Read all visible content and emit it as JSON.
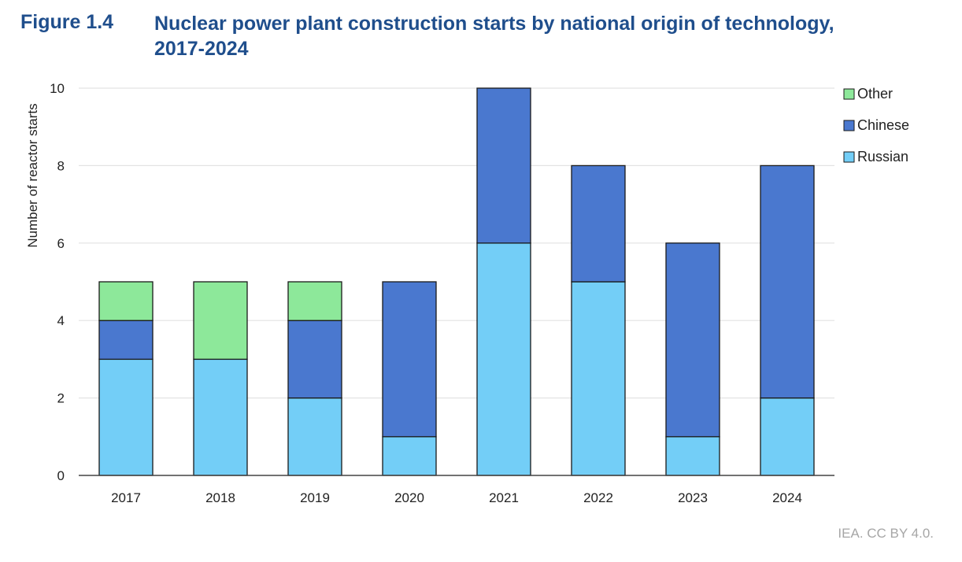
{
  "figure": {
    "label": "Figure 1.4",
    "title_line1": "Nuclear power plant construction starts by national origin of technology,",
    "title_line2": "2017-2024"
  },
  "credit": "IEA. CC BY 4.0.",
  "colors": {
    "Russian": "#73cef7",
    "Chinese": "#4a78cf",
    "Other": "#8de89a",
    "grid": "#e3e3e3",
    "axis": "#444444"
  },
  "chart_data": {
    "type": "bar",
    "stacked": true,
    "title": "Nuclear power plant construction starts by national origin of technology, 2017-2024",
    "xlabel": "",
    "ylabel": "Number of reactor starts",
    "categories": [
      "2017",
      "2018",
      "2019",
      "2020",
      "2021",
      "2022",
      "2023",
      "2024"
    ],
    "series": [
      {
        "name": "Russian",
        "values": [
          3,
          3,
          2,
          1,
          6,
          5,
          1,
          2
        ]
      },
      {
        "name": "Chinese",
        "values": [
          1,
          0,
          2,
          4,
          4,
          3,
          5,
          6
        ]
      },
      {
        "name": "Other",
        "values": [
          1,
          2,
          1,
          0,
          0,
          0,
          0,
          0
        ]
      }
    ],
    "ylim": [
      0,
      10
    ],
    "yticks": [
      0,
      2,
      4,
      6,
      8,
      10
    ],
    "grid": true,
    "legend": {
      "position": "right",
      "order": [
        "Other",
        "Chinese",
        "Russian"
      ]
    }
  }
}
